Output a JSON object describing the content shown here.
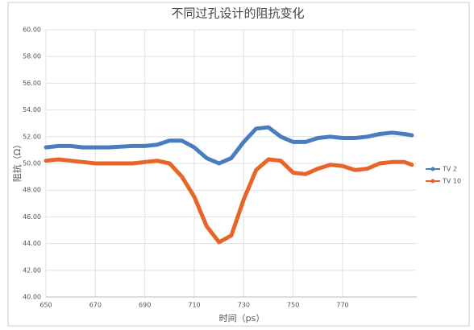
{
  "chart_data": {
    "type": "line",
    "title": "不同过孔设计的阻抗变化",
    "xlabel": "时间（ps）",
    "ylabel": "阻抗（Ω）",
    "x": [
      650,
      655,
      660,
      665,
      670,
      675,
      680,
      685,
      690,
      695,
      700,
      705,
      710,
      715,
      720,
      725,
      730,
      735,
      740,
      745,
      750,
      755,
      760,
      765,
      770,
      775,
      780,
      785,
      790,
      795,
      798
    ],
    "series": [
      {
        "name": "TV 2",
        "color": "#4a7dc0",
        "values": [
          51.2,
          51.3,
          51.3,
          51.2,
          51.2,
          51.2,
          51.25,
          51.3,
          51.3,
          51.4,
          51.7,
          51.7,
          51.2,
          50.4,
          50.0,
          50.4,
          51.6,
          52.6,
          52.7,
          52.0,
          51.6,
          51.6,
          51.9,
          52.0,
          51.9,
          51.9,
          52.0,
          52.2,
          52.3,
          52.2,
          52.1
        ]
      },
      {
        "name": "TV 10",
        "color": "#e8652a",
        "values": [
          50.2,
          50.3,
          50.2,
          50.1,
          50.0,
          50.0,
          50.0,
          50.0,
          50.1,
          50.2,
          50.0,
          49.0,
          47.5,
          45.3,
          44.1,
          44.6,
          47.3,
          49.5,
          50.3,
          50.2,
          49.3,
          49.2,
          49.6,
          49.9,
          49.8,
          49.5,
          49.6,
          50.0,
          50.1,
          50.1,
          49.9
        ]
      }
    ],
    "xlim": [
      650,
      800
    ],
    "xticks": [
      650,
      670,
      690,
      710,
      730,
      750,
      770
    ],
    "ylim": [
      40,
      60
    ],
    "yticks": [
      {
        "value": 40,
        "label": "40.00"
      },
      {
        "value": 42,
        "label": "42.00"
      },
      {
        "value": 44,
        "label": "44.00"
      },
      {
        "value": 46,
        "label": "46.00"
      },
      {
        "value": 48,
        "label": "48.00"
      },
      {
        "value": 50,
        "label": "50.00"
      },
      {
        "value": 52,
        "label": "52.00"
      },
      {
        "value": 54,
        "label": "54.00"
      },
      {
        "value": 56,
        "label": "56.00"
      },
      {
        "value": 58,
        "label": "58.00"
      },
      {
        "value": 60,
        "label": "60.00"
      }
    ],
    "grid": true,
    "legend": "right"
  }
}
